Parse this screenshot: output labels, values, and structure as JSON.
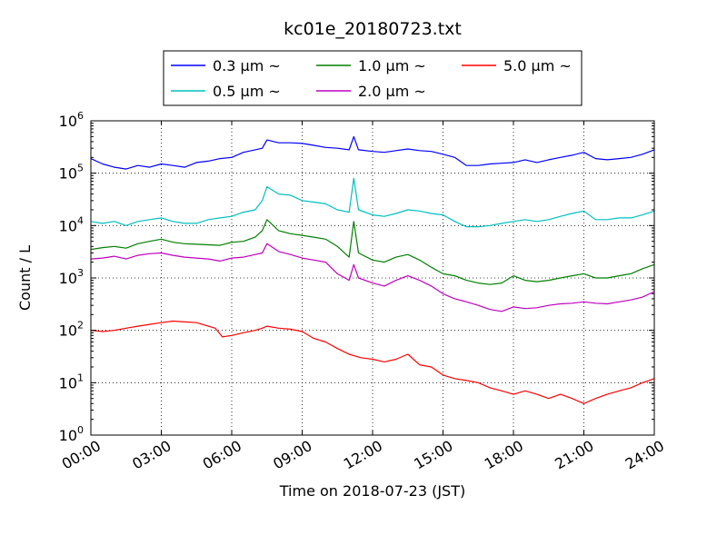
{
  "chart_data": {
    "type": "line",
    "title": "kc01e_20180723.txt",
    "xlabel": "Time on 2018-07-23 (JST)",
    "ylabel": "Count / L",
    "x_axis": {
      "unit": "hours",
      "range": [
        0,
        24
      ],
      "tick_values": [
        0,
        3,
        6,
        9,
        12,
        15,
        18,
        21,
        24
      ],
      "tick_labels": [
        "00:00",
        "03:00",
        "06:00",
        "09:00",
        "12:00",
        "15:00",
        "18:00",
        "21:00",
        "24:00"
      ]
    },
    "y_axis": {
      "scale": "log",
      "range": [
        1,
        1000000
      ],
      "tick_values": [
        1,
        10,
        100,
        1000,
        10000,
        100000,
        1000000
      ],
      "tick_labels": [
        {
          "base": "10",
          "exp": "0"
        },
        {
          "base": "10",
          "exp": "1"
        },
        {
          "base": "10",
          "exp": "2"
        },
        {
          "base": "10",
          "exp": "3"
        },
        {
          "base": "10",
          "exp": "4"
        },
        {
          "base": "10",
          "exp": "5"
        },
        {
          "base": "10",
          "exp": "6"
        }
      ]
    },
    "grid": true,
    "legend": {
      "placement": "top",
      "columns": 3
    },
    "series": [
      {
        "name": "0.3 μm ~",
        "color": "#0000ff",
        "points": [
          [
            0,
            190000
          ],
          [
            0.5,
            150000
          ],
          [
            1,
            130000
          ],
          [
            1.5,
            120000
          ],
          [
            2,
            140000
          ],
          [
            2.5,
            130000
          ],
          [
            3,
            150000
          ],
          [
            3.5,
            140000
          ],
          [
            4,
            130000
          ],
          [
            4.5,
            160000
          ],
          [
            5,
            170000
          ],
          [
            5.5,
            190000
          ],
          [
            6,
            200000
          ],
          [
            6.5,
            250000
          ],
          [
            7,
            280000
          ],
          [
            7.3,
            300000
          ],
          [
            7.5,
            430000
          ],
          [
            8,
            380000
          ],
          [
            8.5,
            380000
          ],
          [
            9,
            370000
          ],
          [
            9.5,
            340000
          ],
          [
            10,
            310000
          ],
          [
            10.5,
            300000
          ],
          [
            11,
            280000
          ],
          [
            11.2,
            500000
          ],
          [
            11.4,
            280000
          ],
          [
            12,
            260000
          ],
          [
            12.5,
            250000
          ],
          [
            13,
            270000
          ],
          [
            13.5,
            290000
          ],
          [
            14,
            270000
          ],
          [
            14.5,
            260000
          ],
          [
            15,
            230000
          ],
          [
            15.5,
            200000
          ],
          [
            16,
            140000
          ],
          [
            16.5,
            140000
          ],
          [
            17,
            150000
          ],
          [
            17.5,
            155000
          ],
          [
            18,
            160000
          ],
          [
            18.5,
            180000
          ],
          [
            19,
            160000
          ],
          [
            19.5,
            180000
          ],
          [
            20,
            200000
          ],
          [
            20.5,
            220000
          ],
          [
            21,
            250000
          ],
          [
            21.5,
            190000
          ],
          [
            22,
            180000
          ],
          [
            22.5,
            190000
          ],
          [
            23,
            200000
          ],
          [
            23.5,
            230000
          ],
          [
            24,
            280000
          ]
        ]
      },
      {
        "name": "0.5 μm ~",
        "color": "#00bfbf",
        "points": [
          [
            0,
            12000
          ],
          [
            0.5,
            11000
          ],
          [
            1,
            12000
          ],
          [
            1.5,
            10000
          ],
          [
            2,
            12000
          ],
          [
            2.5,
            13000
          ],
          [
            3,
            14000
          ],
          [
            3.5,
            12000
          ],
          [
            4,
            11000
          ],
          [
            4.5,
            11000
          ],
          [
            5,
            13000
          ],
          [
            5.5,
            14000
          ],
          [
            6,
            15000
          ],
          [
            6.5,
            18000
          ],
          [
            7,
            20000
          ],
          [
            7.3,
            30000
          ],
          [
            7.5,
            55000
          ],
          [
            8,
            40000
          ],
          [
            8.5,
            38000
          ],
          [
            9,
            30000
          ],
          [
            9.5,
            28000
          ],
          [
            10,
            26000
          ],
          [
            10.5,
            20000
          ],
          [
            11,
            18000
          ],
          [
            11.2,
            80000
          ],
          [
            11.4,
            20000
          ],
          [
            12,
            16000
          ],
          [
            12.5,
            15000
          ],
          [
            13,
            17000
          ],
          [
            13.5,
            20000
          ],
          [
            14,
            19000
          ],
          [
            14.5,
            17000
          ],
          [
            15,
            16000
          ],
          [
            15.5,
            12000
          ],
          [
            16,
            9500
          ],
          [
            16.5,
            9500
          ],
          [
            17,
            10000
          ],
          [
            17.5,
            11000
          ],
          [
            18,
            12000
          ],
          [
            18.5,
            13000
          ],
          [
            19,
            12000
          ],
          [
            19.5,
            13000
          ],
          [
            20,
            15000
          ],
          [
            20.5,
            17000
          ],
          [
            21,
            19000
          ],
          [
            21.5,
            13000
          ],
          [
            22,
            13000
          ],
          [
            22.5,
            14000
          ],
          [
            23,
            14000
          ],
          [
            23.5,
            16000
          ],
          [
            24,
            19000
          ]
        ]
      },
      {
        "name": "1.0 μm ~",
        "color": "#008000",
        "points": [
          [
            0,
            3500
          ],
          [
            0.5,
            3800
          ],
          [
            1,
            4000
          ],
          [
            1.5,
            3700
          ],
          [
            2,
            4500
          ],
          [
            2.5,
            5000
          ],
          [
            3,
            5500
          ],
          [
            3.5,
            4800
          ],
          [
            4,
            4500
          ],
          [
            4.5,
            4400
          ],
          [
            5,
            4300
          ],
          [
            5.5,
            4200
          ],
          [
            6,
            4800
          ],
          [
            6.5,
            5000
          ],
          [
            7,
            6000
          ],
          [
            7.3,
            8000
          ],
          [
            7.5,
            13000
          ],
          [
            8,
            8000
          ],
          [
            8.5,
            7000
          ],
          [
            9,
            6500
          ],
          [
            9.5,
            6000
          ],
          [
            10,
            5500
          ],
          [
            10.5,
            4000
          ],
          [
            11,
            2500
          ],
          [
            11.2,
            12000
          ],
          [
            11.4,
            3000
          ],
          [
            12,
            2200
          ],
          [
            12.5,
            2000
          ],
          [
            13,
            2500
          ],
          [
            13.5,
            2800
          ],
          [
            14,
            2200
          ],
          [
            14.5,
            1600
          ],
          [
            15,
            1200
          ],
          [
            15.5,
            1100
          ],
          [
            16,
            900
          ],
          [
            16.5,
            800
          ],
          [
            17,
            750
          ],
          [
            17.5,
            800
          ],
          [
            18,
            1100
          ],
          [
            18.5,
            900
          ],
          [
            19,
            850
          ],
          [
            19.5,
            900
          ],
          [
            20,
            1000
          ],
          [
            20.5,
            1100
          ],
          [
            21,
            1200
          ],
          [
            21.5,
            1000
          ],
          [
            22,
            1000
          ],
          [
            22.5,
            1100
          ],
          [
            23,
            1200
          ],
          [
            23.5,
            1500
          ],
          [
            24,
            1800
          ]
        ]
      },
      {
        "name": "2.0 μm ~",
        "color": "#bf00bf",
        "points": [
          [
            0,
            2300
          ],
          [
            0.5,
            2400
          ],
          [
            1,
            2600
          ],
          [
            1.5,
            2300
          ],
          [
            2,
            2700
          ],
          [
            2.5,
            2900
          ],
          [
            3,
            3000
          ],
          [
            3.5,
            2700
          ],
          [
            4,
            2500
          ],
          [
            4.5,
            2400
          ],
          [
            5,
            2300
          ],
          [
            5.5,
            2100
          ],
          [
            6,
            2400
          ],
          [
            6.5,
            2500
          ],
          [
            7,
            2800
          ],
          [
            7.3,
            3000
          ],
          [
            7.5,
            4500
          ],
          [
            8,
            3200
          ],
          [
            8.5,
            2800
          ],
          [
            9,
            2400
          ],
          [
            9.5,
            2200
          ],
          [
            10,
            2000
          ],
          [
            10.5,
            1200
          ],
          [
            11,
            900
          ],
          [
            11.2,
            1800
          ],
          [
            11.4,
            1000
          ],
          [
            12,
            800
          ],
          [
            12.5,
            700
          ],
          [
            13,
            900
          ],
          [
            13.5,
            1100
          ],
          [
            14,
            900
          ],
          [
            14.5,
            700
          ],
          [
            15,
            500
          ],
          [
            15.5,
            400
          ],
          [
            16,
            350
          ],
          [
            16.5,
            300
          ],
          [
            17,
            250
          ],
          [
            17.5,
            230
          ],
          [
            18,
            280
          ],
          [
            18.5,
            260
          ],
          [
            19,
            270
          ],
          [
            19.5,
            300
          ],
          [
            20,
            320
          ],
          [
            20.5,
            330
          ],
          [
            21,
            350
          ],
          [
            21.5,
            330
          ],
          [
            22,
            320
          ],
          [
            22.5,
            350
          ],
          [
            23,
            380
          ],
          [
            23.5,
            430
          ],
          [
            24,
            550
          ]
        ]
      },
      {
        "name": "5.0 μm ~",
        "color": "#ff0000",
        "points": [
          [
            0,
            100
          ],
          [
            0.5,
            95
          ],
          [
            1,
            100
          ],
          [
            1.5,
            110
          ],
          [
            2,
            120
          ],
          [
            2.5,
            130
          ],
          [
            3,
            140
          ],
          [
            3.5,
            150
          ],
          [
            4,
            145
          ],
          [
            4.5,
            140
          ],
          [
            5,
            120
          ],
          [
            5.3,
            110
          ],
          [
            5.6,
            75
          ],
          [
            6,
            80
          ],
          [
            6.5,
            90
          ],
          [
            7,
            100
          ],
          [
            7.3,
            110
          ],
          [
            7.5,
            120
          ],
          [
            8,
            110
          ],
          [
            8.5,
            105
          ],
          [
            9,
            95
          ],
          [
            9.5,
            70
          ],
          [
            10,
            60
          ],
          [
            10.5,
            45
          ],
          [
            11,
            35
          ],
          [
            11.5,
            30
          ],
          [
            12,
            28
          ],
          [
            12.5,
            25
          ],
          [
            13,
            28
          ],
          [
            13.5,
            35
          ],
          [
            14,
            22
          ],
          [
            14.5,
            20
          ],
          [
            15,
            14
          ],
          [
            15.5,
            12
          ],
          [
            16,
            11
          ],
          [
            16.5,
            10
          ],
          [
            17,
            8
          ],
          [
            17.5,
            7
          ],
          [
            18,
            6
          ],
          [
            18.5,
            7
          ],
          [
            19,
            6
          ],
          [
            19.5,
            5
          ],
          [
            20,
            6
          ],
          [
            20.5,
            5
          ],
          [
            21,
            4
          ],
          [
            21.5,
            5
          ],
          [
            22,
            6
          ],
          [
            22.5,
            7
          ],
          [
            23,
            8
          ],
          [
            23.5,
            10
          ],
          [
            24,
            12
          ]
        ]
      }
    ]
  }
}
